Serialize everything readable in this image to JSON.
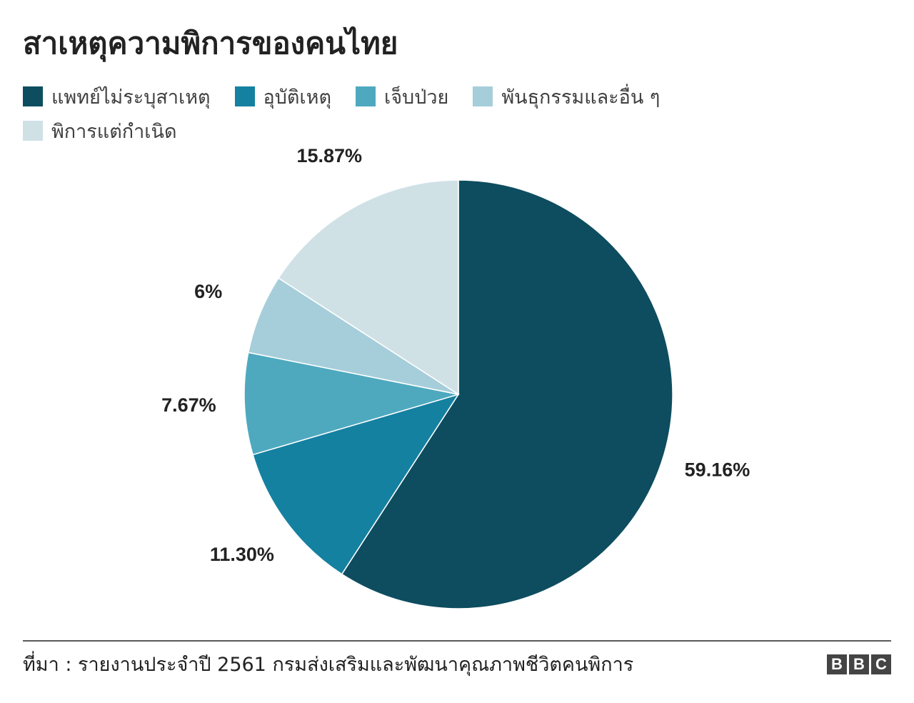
{
  "chart_data": {
    "type": "pie",
    "title": "สาเหตุความพิการของคนไทย",
    "categories": [
      "แพทย์ไม่ระบุสาเหตุ",
      "อุบัติเหตุ",
      "เจ็บป่วย",
      "พันธุกรรมและอื่น ๆ",
      "พิการแต่กำเนิด"
    ],
    "values": [
      59.16,
      11.3,
      7.67,
      6,
      15.87
    ],
    "value_labels": [
      "59.16%",
      "11.30%",
      "7.67%",
      "6%",
      "15.87%"
    ],
    "colors": [
      "#0d4d5f",
      "#1581a1",
      "#4ea9bf",
      "#a6ceda",
      "#d0e1e6"
    ],
    "source": "ที่มา : รายงานประจำปี 2561 กรมส่งเสริมและพัฒนาคุณภาพชีวิตคนพิการ",
    "logo_letters": [
      "B",
      "B",
      "C"
    ]
  }
}
